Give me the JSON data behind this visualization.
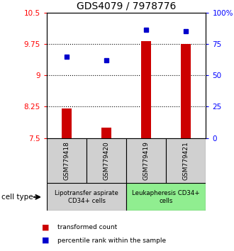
{
  "title": "GDS4079 / 7978776",
  "samples": [
    "GSM779418",
    "GSM779420",
    "GSM779419",
    "GSM779421"
  ],
  "transformed_counts": [
    8.2,
    7.75,
    9.82,
    9.75
  ],
  "percentile_ranks": [
    65,
    62,
    86,
    85
  ],
  "ylim_left": [
    7.5,
    10.5
  ],
  "ylim_right": [
    0,
    100
  ],
  "yticks_left": [
    7.5,
    8.25,
    9.0,
    9.75,
    10.5
  ],
  "ytick_labels_left": [
    "7.5",
    "8.25",
    "9",
    "9.75",
    "10.5"
  ],
  "yticks_right": [
    0,
    25,
    50,
    75,
    100
  ],
  "ytick_labels_right": [
    "0",
    "25",
    "50",
    "75",
    "100%"
  ],
  "hlines": [
    8.25,
    9.0,
    9.75
  ],
  "bar_color": "#cc0000",
  "dot_color": "#0000cc",
  "bar_width": 0.25,
  "baseline": 7.5,
  "group_labels": [
    "Lipotransfer aspirate\nCD34+ cells",
    "Leukapheresis CD34+\ncells"
  ],
  "group_colors": [
    "#d0d0d0",
    "#90ee90"
  ],
  "sample_box_color": "#d0d0d0",
  "cell_type_label": "cell type",
  "legend_bar_label": "transformed count",
  "legend_dot_label": "percentile rank within the sample",
  "title_fontsize": 10,
  "tick_fontsize": 7.5,
  "label_fontsize": 8
}
